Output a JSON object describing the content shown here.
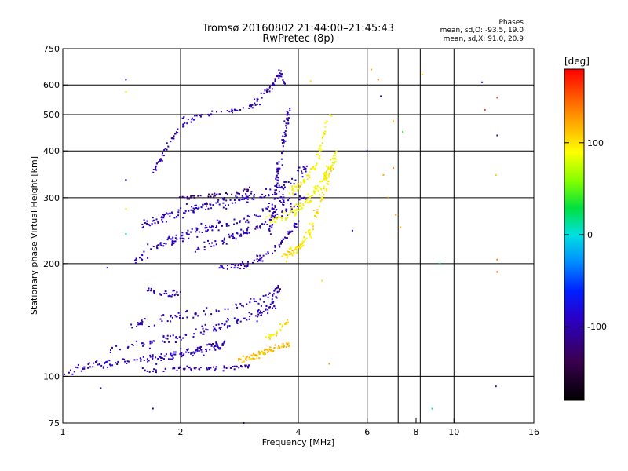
{
  "chart_data": {
    "type": "scatter",
    "title": "Tromsø 20160802 21:44:00–21:45:43",
    "subtitle": "RwPretec (8p)",
    "legend": {
      "title": "Phases",
      "line_o": "mean, sd,O: -93.5, 19.0",
      "line_x": "mean, sd,X:  91.0, 20.9"
    },
    "xlabel": "Frequency [MHz]",
    "ylabel": "Stationary phase Virtual Height [km]",
    "x_scale": "log",
    "y_scale": "log",
    "xlim": [
      1,
      16
    ],
    "ylim": [
      75,
      750
    ],
    "x_ticks": [
      1,
      2,
      4,
      6,
      8,
      10,
      16
    ],
    "x_tick_labels": [
      "1",
      "2",
      "4",
      "6",
      "8",
      "10",
      "16"
    ],
    "x_grid": [
      2,
      4,
      6,
      7.2,
      8.2,
      10
    ],
    "y_ticks": [
      75,
      100,
      200,
      300,
      400,
      500,
      600,
      750
    ],
    "y_tick_labels": [
      "75",
      "100",
      "200",
      "300",
      "400",
      "500",
      "600",
      "750"
    ],
    "y_grid": [
      100,
      200,
      300,
      400,
      500,
      600
    ],
    "grid": true,
    "colorbar": {
      "label": "[deg]",
      "min": -180,
      "max": 180,
      "ticks": [
        100,
        0,
        -100
      ],
      "tick_labels": [
        "100",
        "0",
        "-100"
      ]
    },
    "traces": [
      {
        "f": [
          1.0,
          1.2,
          1.5,
          1.8,
          2.0,
          2.3,
          2.6
        ],
        "h": [
          103,
          107,
          110,
          112,
          115,
          118,
          122
        ],
        "phase": -95,
        "spread": 0.04,
        "n": 160
      },
      {
        "f": [
          1.6,
          1.8,
          2.0,
          2.2,
          2.5,
          2.8,
          3.0
        ],
        "h": [
          104,
          104,
          105,
          105,
          105,
          106,
          107
        ],
        "phase": -105,
        "spread": 0.02,
        "n": 70
      },
      {
        "f": [
          1.3,
          1.6,
          2.0,
          2.4,
          2.8,
          3.2,
          3.5
        ],
        "h": [
          118,
          122,
          128,
          134,
          140,
          148,
          158
        ],
        "phase": -95,
        "spread": 0.05,
        "n": 120
      },
      {
        "f": [
          1.5,
          1.7,
          2.0,
          2.5,
          3.0,
          3.4,
          3.6
        ],
        "h": [
          138,
          140,
          145,
          150,
          158,
          165,
          172
        ],
        "phase": -100,
        "spread": 0.04,
        "n": 90
      },
      {
        "f": [
          1.6,
          1.7,
          1.8,
          1.9,
          2.0
        ],
        "h": [
          170,
          168,
          166,
          166,
          167
        ],
        "phase": -100,
        "spread": 0.03,
        "n": 30
      },
      {
        "f": [
          2.5,
          2.8,
          3.0,
          3.3,
          3.7,
          4.0
        ],
        "h": [
          195,
          197,
          200,
          210,
          232,
          260
        ],
        "phase": -100,
        "spread": 0.03,
        "n": 80
      },
      {
        "f": [
          2.2,
          2.6,
          3.0,
          3.4,
          3.8,
          4.2
        ],
        "h": [
          220,
          232,
          245,
          260,
          280,
          305
        ],
        "phase": -100,
        "spread": 0.04,
        "n": 90
      },
      {
        "f": [
          1.5,
          1.7,
          2.0,
          2.2,
          2.5,
          3.0,
          3.5,
          3.9
        ],
        "h": [
          200,
          220,
          235,
          245,
          252,
          265,
          285,
          305
        ],
        "phase": -95,
        "spread": 0.05,
        "n": 140
      },
      {
        "f": [
          1.6,
          1.8,
          2.0,
          2.3,
          2.6,
          3.0,
          3.4,
          3.8,
          4.2
        ],
        "h": [
          255,
          265,
          275,
          285,
          292,
          300,
          310,
          330,
          360
        ],
        "phase": -95,
        "spread": 0.05,
        "n": 160
      },
      {
        "f": [
          2.0,
          2.2,
          2.5,
          2.8,
          3.0
        ],
        "h": [
          300,
          302,
          305,
          310,
          315
        ],
        "phase": -120,
        "spread": 0.02,
        "n": 40
      },
      {
        "f": [
          1.7,
          1.8,
          1.9,
          2.0,
          2.1,
          2.2
        ],
        "h": [
          350,
          390,
          430,
          465,
          480,
          490
        ],
        "phase": -100,
        "spread": 0.03,
        "n": 50
      },
      {
        "f": [
          2.0,
          2.3,
          2.6,
          2.9,
          3.2
        ],
        "h": [
          490,
          500,
          510,
          520,
          540
        ],
        "phase": -100,
        "spread": 0.02,
        "n": 40
      },
      {
        "f": [
          3.0,
          3.2,
          3.4,
          3.5,
          3.6,
          3.7
        ],
        "h": [
          520,
          560,
          590,
          620,
          650,
          600
        ],
        "phase": -100,
        "spread": 0.03,
        "n": 50
      },
      {
        "f": [
          3.4,
          3.5,
          3.6,
          3.7,
          3.8
        ],
        "h": [
          240,
          300,
          380,
          450,
          520
        ],
        "phase": -100,
        "spread": 0.04,
        "n": 100
      },
      {
        "f": [
          3.7,
          3.9,
          4.1,
          4.3,
          4.6,
          4.9
        ],
        "h": [
          210,
          215,
          225,
          245,
          300,
          370
        ],
        "phase": 100,
        "spread": 0.04,
        "n": 110
      },
      {
        "f": [
          3.3,
          3.6,
          3.9,
          4.2,
          4.5,
          4.8,
          5.0
        ],
        "h": [
          260,
          265,
          275,
          290,
          320,
          360,
          390
        ],
        "phase": 90,
        "spread": 0.04,
        "n": 120
      },
      {
        "f": [
          3.8,
          4.1,
          4.4,
          4.6,
          4.8
        ],
        "h": [
          310,
          330,
          360,
          420,
          500
        ],
        "phase": 95,
        "spread": 0.04,
        "n": 70
      },
      {
        "f": [
          2.8,
          3.0,
          3.2,
          3.4,
          3.6,
          3.8
        ],
        "h": [
          110,
          112,
          115,
          118,
          120,
          122
        ],
        "phase": 115,
        "spread": 0.03,
        "n": 80
      },
      {
        "f": [
          3.3,
          3.5,
          3.7,
          3.9
        ],
        "h": [
          125,
          130,
          138,
          145
        ],
        "phase": 100,
        "spread": 0.03,
        "n": 25
      }
    ],
    "isolated_points": [
      {
        "f": 1.45,
        "h": 620,
        "phase": -100
      },
      {
        "f": 1.45,
        "h": 575,
        "phase": 100
      },
      {
        "f": 1.45,
        "h": 335,
        "phase": -100
      },
      {
        "f": 1.45,
        "h": 280,
        "phase": 100
      },
      {
        "f": 1.45,
        "h": 240,
        "phase": 10
      },
      {
        "f": 1.3,
        "h": 195,
        "phase": -100
      },
      {
        "f": 1.7,
        "h": 82,
        "phase": -100
      },
      {
        "f": 1.25,
        "h": 93,
        "phase": -100
      },
      {
        "f": 2.9,
        "h": 75,
        "phase": -100
      },
      {
        "f": 6.15,
        "h": 660,
        "phase": 120
      },
      {
        "f": 6.4,
        "h": 620,
        "phase": 140
      },
      {
        "f": 6.5,
        "h": 560,
        "phase": -100
      },
      {
        "f": 7.0,
        "h": 480,
        "phase": 120
      },
      {
        "f": 7.4,
        "h": 450,
        "phase": 40
      },
      {
        "f": 8.3,
        "h": 640,
        "phase": 110
      },
      {
        "f": 7.0,
        "h": 360,
        "phase": 130
      },
      {
        "f": 6.8,
        "h": 300,
        "phase": 130
      },
      {
        "f": 7.1,
        "h": 270,
        "phase": 130
      },
      {
        "f": 7.3,
        "h": 250,
        "phase": 120
      },
      {
        "f": 6.0,
        "h": 400,
        "phase": -100
      },
      {
        "f": 6.6,
        "h": 345,
        "phase": 120
      },
      {
        "f": 5.5,
        "h": 245,
        "phase": -100
      },
      {
        "f": 9.2,
        "h": 200,
        "phase": 10
      },
      {
        "f": 8.8,
        "h": 82,
        "phase": 20
      },
      {
        "f": 11.8,
        "h": 610,
        "phase": -100
      },
      {
        "f": 12.9,
        "h": 555,
        "phase": 160
      },
      {
        "f": 12.0,
        "h": 515,
        "phase": 160
      },
      {
        "f": 12.9,
        "h": 440,
        "phase": -100
      },
      {
        "f": 12.8,
        "h": 345,
        "phase": 110
      },
      {
        "f": 12.9,
        "h": 205,
        "phase": 140
      },
      {
        "f": 12.9,
        "h": 190,
        "phase": 150
      },
      {
        "f": 12.8,
        "h": 94,
        "phase": -100
      },
      {
        "f": 4.3,
        "h": 615,
        "phase": 100
      },
      {
        "f": 4.8,
        "h": 108,
        "phase": 130
      },
      {
        "f": 4.6,
        "h": 180,
        "phase": 100
      }
    ]
  }
}
